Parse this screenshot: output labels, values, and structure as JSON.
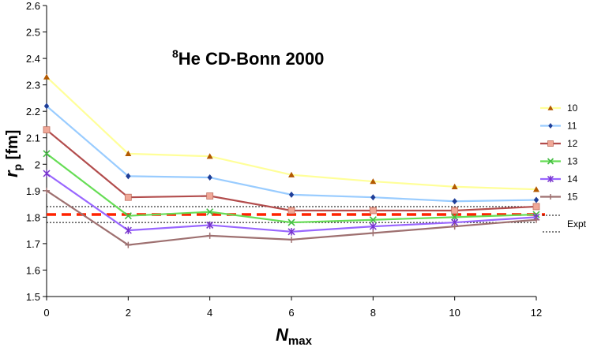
{
  "chart_data": {
    "type": "line",
    "title_sup": "8",
    "title_main": "He   CD-Bonn 2000",
    "xlabel_main": "N",
    "xlabel_sub": "max",
    "ylabel_main": "r",
    "ylabel_sub": "p",
    "ylabel_unit": " [fm]",
    "x": [
      0,
      2,
      4,
      6,
      8,
      10,
      12
    ],
    "xlim": [
      0,
      12
    ],
    "ylim": [
      1.5,
      2.6
    ],
    "xticks": [
      0,
      2,
      4,
      6,
      8,
      10,
      12
    ],
    "yticks": [
      "1.5",
      "1.6",
      "1.7",
      "1.8",
      "1.9",
      "2",
      "2.1",
      "2.2",
      "2.3",
      "2.4",
      "2.5",
      "2.6"
    ],
    "series": [
      {
        "name": "10",
        "color": "#ffff99",
        "marker": "triangle",
        "marker_color": "#b35900",
        "values": [
          2.33,
          2.04,
          2.03,
          1.96,
          1.935,
          1.915,
          1.905
        ]
      },
      {
        "name": "11",
        "color": "#99ccff",
        "marker": "diamond",
        "marker_color": "#1f3f99",
        "values": [
          2.22,
          1.955,
          1.95,
          1.885,
          1.875,
          1.86,
          1.865
        ]
      },
      {
        "name": "12",
        "color": "#b24c4c",
        "marker": "square",
        "marker_color": "#f0a898",
        "values": [
          2.13,
          1.875,
          1.88,
          1.825,
          1.825,
          1.825,
          1.84
        ]
      },
      {
        "name": "13",
        "color": "#66dd55",
        "marker": "x",
        "marker_color": "#44bb44",
        "values": [
          2.04,
          1.805,
          1.82,
          1.78,
          1.79,
          1.8,
          1.81
        ]
      },
      {
        "name": "14",
        "color": "#9966ff",
        "marker": "star",
        "marker_color": "#7733cc",
        "values": [
          1.965,
          1.75,
          1.77,
          1.745,
          1.765,
          1.78,
          1.8
        ]
      },
      {
        "name": "15",
        "color": "#9e7070",
        "marker": "plus",
        "marker_color": "#9e7070",
        "values": [
          1.9,
          1.695,
          1.73,
          1.715,
          1.74,
          1.765,
          1.79
        ]
      }
    ],
    "expt": {
      "label": "Expt",
      "value": 1.81,
      "error_low": 1.78,
      "error_high": 1.84,
      "color": "#ff2200"
    }
  }
}
